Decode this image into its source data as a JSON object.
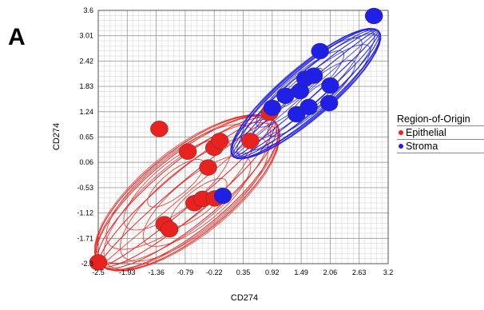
{
  "panel_label": "A",
  "legend": {
    "title": "Region-of-Origin",
    "items": [
      {
        "label": "Epithelial",
        "color": "#ff1a1a"
      },
      {
        "label": "Stroma",
        "color": "#1f1fe6"
      }
    ]
  },
  "chart_data": {
    "type": "scatter",
    "title": "",
    "xlabel": "CD274",
    "ylabel": "CD274",
    "xlim": [
      -2.5,
      3.2
    ],
    "ylim": [
      -2.3,
      3.6
    ],
    "x_ticks": [
      "-2.5",
      "-1.93",
      "-1.36",
      "-0.79",
      "-0.22",
      "0.35",
      "0.92",
      "1.49",
      "2.06",
      "2.63",
      "3.2"
    ],
    "y_ticks": [
      "-2.3",
      "-1.71",
      "-1.12",
      "-0.53",
      "0.06",
      "0.65",
      "1.24",
      "1.83",
      "2.42",
      "3.01",
      "3.6"
    ],
    "grid": true,
    "legend_position": "right",
    "series": [
      {
        "name": "Epithelial",
        "color": "#e8231f",
        "points": [
          {
            "x": -2.5,
            "y": -2.27
          },
          {
            "x": -1.3,
            "y": 0.84
          },
          {
            "x": -1.2,
            "y": -1.38
          },
          {
            "x": -1.1,
            "y": -1.5
          },
          {
            "x": -0.74,
            "y": 0.31
          },
          {
            "x": -0.61,
            "y": -0.89
          },
          {
            "x": -0.45,
            "y": -0.79
          },
          {
            "x": -0.34,
            "y": -0.06
          },
          {
            "x": -0.22,
            "y": 0.4
          },
          {
            "x": -0.21,
            "y": -0.78
          },
          {
            "x": -0.11,
            "y": 0.56
          },
          {
            "x": 0.49,
            "y": 0.56
          },
          {
            "x": 0.87,
            "y": 1.22
          }
        ]
      },
      {
        "name": "Stroma",
        "color": "#1f1fe6",
        "points": [
          {
            "x": -0.05,
            "y": -0.72
          },
          {
            "x": 0.92,
            "y": 1.33
          },
          {
            "x": 1.18,
            "y": 1.61
          },
          {
            "x": 1.4,
            "y": 1.18
          },
          {
            "x": 1.47,
            "y": 1.72
          },
          {
            "x": 1.57,
            "y": 2.01
          },
          {
            "x": 1.64,
            "y": 1.35
          },
          {
            "x": 1.74,
            "y": 2.08
          },
          {
            "x": 1.86,
            "y": 2.65
          },
          {
            "x": 2.04,
            "y": 1.44
          },
          {
            "x": 2.06,
            "y": 1.85
          },
          {
            "x": 2.92,
            "y": 3.47
          }
        ]
      }
    ],
    "ellipses": [
      {
        "series": "Epithelial",
        "color": "#e8231f",
        "center": [
          -0.75,
          -0.65
        ],
        "semi_major": 2.4,
        "semi_minor": 0.95,
        "angle_deg": 45
      },
      {
        "series": "Stroma",
        "color": "#1f1fe6",
        "center": [
          1.58,
          1.66
        ],
        "semi_major": 2.05,
        "semi_minor": 0.55,
        "angle_deg": 46
      }
    ]
  }
}
